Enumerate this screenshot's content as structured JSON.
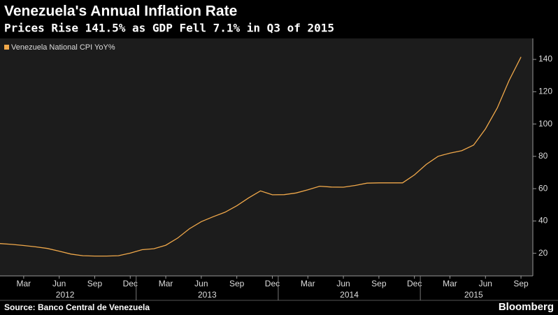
{
  "chart_data": {
    "type": "line",
    "title": "Venezuela's Annual Inflation Rate",
    "subtitle": "Prices Rise 141.5% as GDP Fell 7.1% in Q3 of 2015",
    "source": "Source: Banco Central de Venezuela",
    "logo": "Bloomberg",
    "x": [
      "2012-01",
      "2012-02",
      "2012-03",
      "2012-04",
      "2012-05",
      "2012-06",
      "2012-07",
      "2012-08",
      "2012-09",
      "2012-10",
      "2012-11",
      "2012-12",
      "2013-01",
      "2013-02",
      "2013-03",
      "2013-04",
      "2013-05",
      "2013-06",
      "2013-07",
      "2013-08",
      "2013-09",
      "2013-10",
      "2013-11",
      "2013-12",
      "2014-01",
      "2014-02",
      "2014-03",
      "2014-04",
      "2014-05",
      "2014-06",
      "2014-07",
      "2014-08",
      "2014-09",
      "2014-10",
      "2014-11",
      "2014-12",
      "2015-01",
      "2015-02",
      "2015-03",
      "2015-04",
      "2015-05",
      "2015-06",
      "2015-07",
      "2015-08",
      "2015-09"
    ],
    "series": [
      {
        "name": "Venezuela National CPI YoY%",
        "color": "#f0a84a",
        "values": [
          26,
          25.5,
          24.8,
          24,
          23,
          21.3,
          19.5,
          18.5,
          18.3,
          18.3,
          18.5,
          20.1,
          22.2,
          22.8,
          25,
          29.4,
          35.2,
          39.6,
          42.6,
          45.4,
          49.4,
          54.3,
          58.6,
          56.2,
          56.3,
          57.3,
          59.3,
          61.5,
          61,
          60.9,
          62,
          63.4,
          63.6,
          63.6,
          63.6,
          68.5,
          75,
          80,
          82,
          83.5,
          87,
          97,
          110,
          127,
          141.5
        ]
      }
    ],
    "xlim": [
      "2012-01",
      "2015-10"
    ],
    "xticks": [
      {
        "value": "2012-03",
        "label": "Mar"
      },
      {
        "value": "2012-06",
        "label": "Jun"
      },
      {
        "value": "2012-09",
        "label": "Sep"
      },
      {
        "value": "2012-12",
        "label": "Dec"
      },
      {
        "value": "2013-03",
        "label": "Mar"
      },
      {
        "value": "2013-06",
        "label": "Jun"
      },
      {
        "value": "2013-09",
        "label": "Sep"
      },
      {
        "value": "2013-12",
        "label": "Dec"
      },
      {
        "value": "2014-03",
        "label": "Mar"
      },
      {
        "value": "2014-06",
        "label": "Jun"
      },
      {
        "value": "2014-09",
        "label": "Sep"
      },
      {
        "value": "2014-12",
        "label": "Dec"
      },
      {
        "value": "2015-03",
        "label": "Mar"
      },
      {
        "value": "2015-06",
        "label": "Jun"
      },
      {
        "value": "2015-09",
        "label": "Sep"
      }
    ],
    "year_ticks": [
      2012,
      2013,
      2014,
      2015
    ],
    "ylim": [
      6,
      153
    ],
    "yticks": [
      20,
      40,
      60,
      80,
      100,
      120,
      140
    ],
    "y_axis_side": "right",
    "grid": false
  }
}
